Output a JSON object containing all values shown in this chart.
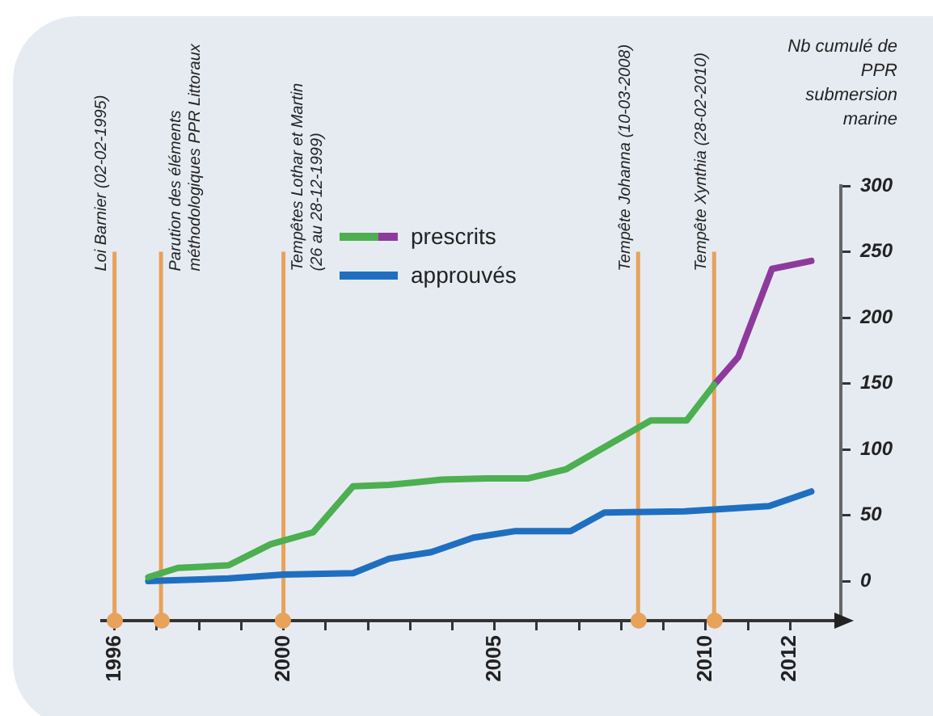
{
  "chart_data": {
    "type": "line",
    "ylabel": "Nb cumulé de PPR submersion marine",
    "xlim": [
      1995.7,
      2013.2
    ],
    "ylim": [
      -30,
      300
    ],
    "xticks": [
      1996,
      {
        "value": 1997,
        "label": null
      },
      {
        "value": 1998,
        "label": null
      },
      {
        "value": 1999,
        "label": null
      },
      2000,
      {
        "value": 2001,
        "label": null
      },
      {
        "value": 2002,
        "label": null
      },
      {
        "value": 2003,
        "label": null
      },
      {
        "value": 2004,
        "label": null
      },
      2005,
      {
        "value": 2006,
        "label": null
      },
      {
        "value": 2007,
        "label": null
      },
      {
        "value": 2008,
        "label": null
      },
      {
        "value": 2009,
        "label": null
      },
      2010,
      {
        "value": 2011,
        "label": null
      },
      2012
    ],
    "yticks": [
      0,
      50,
      100,
      150,
      200,
      250,
      300
    ],
    "grid": false,
    "legend": "top",
    "marker": "none",
    "line_style": "solid",
    "series": [
      {
        "name": "prescrits",
        "color": "#4caf50",
        "x": [
          1996.8,
          1997.5,
          1998.7,
          1999.7,
          2000.7,
          2001.65,
          2002.5,
          2003.75,
          2004.8,
          2005.8,
          2006.7,
          2008.7,
          2009.55,
          2010.2
        ],
        "values": [
          3,
          10,
          12,
          28,
          37,
          72,
          73,
          77,
          78,
          78,
          85,
          122,
          122,
          149
        ]
      },
      {
        "color": "#8e3a9d",
        "x": [
          2010.2,
          2010.77,
          2011.57,
          2012.5
        ],
        "values": [
          149,
          170,
          237,
          243
        ]
      },
      {
        "name": "approuvés",
        "color": "#1f6fc0",
        "x": [
          1996.8,
          1998.7,
          2000,
          2001.65,
          2002.5,
          2003.5,
          2004.5,
          2005.5,
          2006.8,
          2007.6,
          2009.5,
          2011.5,
          2012.5
        ],
        "values": [
          0,
          2,
          5,
          6,
          17,
          22,
          33,
          38,
          38,
          52,
          53,
          57,
          68
        ]
      }
    ],
    "ref_lines": [
      {
        "axis": "x",
        "value": 1996,
        "label": "Loi Barnier (02-02-1995)",
        "color": "#e8a25a"
      },
      {
        "axis": "x",
        "value": 1997.1,
        "label": "Parution des éléments méthodologiques PPR Littoraux",
        "color": "#e8a25a"
      },
      {
        "axis": "x",
        "value": 2000,
        "label": "Tempêtes Lothar et Martin (26 au 28-12-1999)",
        "color": "#e8a25a"
      },
      {
        "axis": "x",
        "value": 2008.4,
        "label": "Tempête Johanna (10-03-2008)",
        "color": "#e8a25a"
      },
      {
        "axis": "x",
        "value": 2010.2,
        "label": "Tempête Xynthia (28-02-2010)",
        "color": "#e8a25a"
      }
    ]
  }
}
